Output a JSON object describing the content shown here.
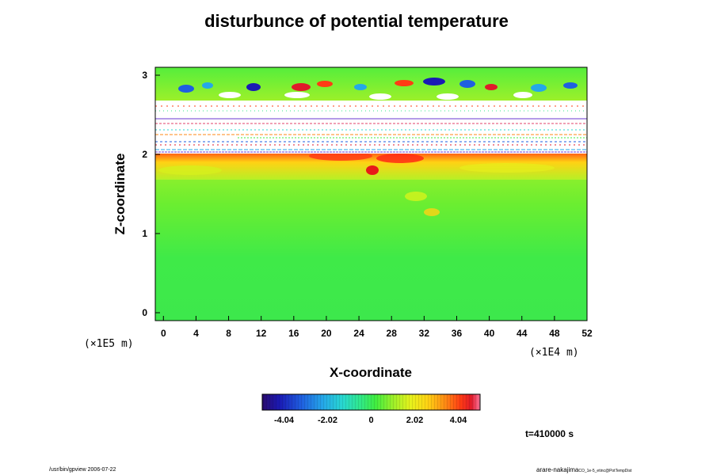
{
  "chart_data": {
    "type": "heatmap",
    "title": "disturbunce of potential temperature",
    "xlabel": "X-coordinate",
    "ylabel": "Z-coordinate",
    "x_scale_note": "(×1E4 m)",
    "z_scale_note": "(×1E5 m)",
    "x_ticks": [
      "0",
      "4",
      "8",
      "12",
      "16",
      "20",
      "24",
      "28",
      "32",
      "36",
      "40",
      "44",
      "48",
      "52"
    ],
    "y_ticks": [
      "0",
      "1",
      "2",
      "3"
    ],
    "xlim": [
      -1,
      52
    ],
    "ylim": [
      -0.1,
      3.1
    ],
    "colorbar": {
      "tick_labels": [
        "-4.04",
        "-2.02",
        "0",
        "2.02",
        "4.04"
      ],
      "tick_values": [
        -4.04,
        -2.02,
        0,
        2.02,
        4.04
      ],
      "range": [
        -5.05,
        5.05
      ],
      "colors": [
        "#2a0a6e",
        "#1a1ab4",
        "#1f5fe0",
        "#25a8e8",
        "#28d8d0",
        "#30e88a",
        "#40ee40",
        "#9cf02a",
        "#e6f21c",
        "#ffd214",
        "#ff8a14",
        "#ff3c14",
        "#e01a2a",
        "#ff7aa0"
      ]
    },
    "regions": [
      {
        "z_range": [
          -0.1,
          1.95
        ],
        "description_value": "near 0 (green)"
      },
      {
        "z_range": [
          1.95,
          2.0
        ],
        "description_value": "positive (yellow/red)"
      },
      {
        "z_range": [
          2.0,
          2.7
        ],
        "description_value": "out of range (white)"
      },
      {
        "z_range": [
          2.7,
          3.1
        ],
        "description_value": "mixed, near 0 with strong +/- features"
      }
    ],
    "time": "t=410000 s"
  },
  "footer": {
    "left": "/usr/bin/gpview 2006-07-22",
    "right_main": "arare-nakajima",
    "right_small": "CO_1e-5_etinc@PotTempDist"
  }
}
